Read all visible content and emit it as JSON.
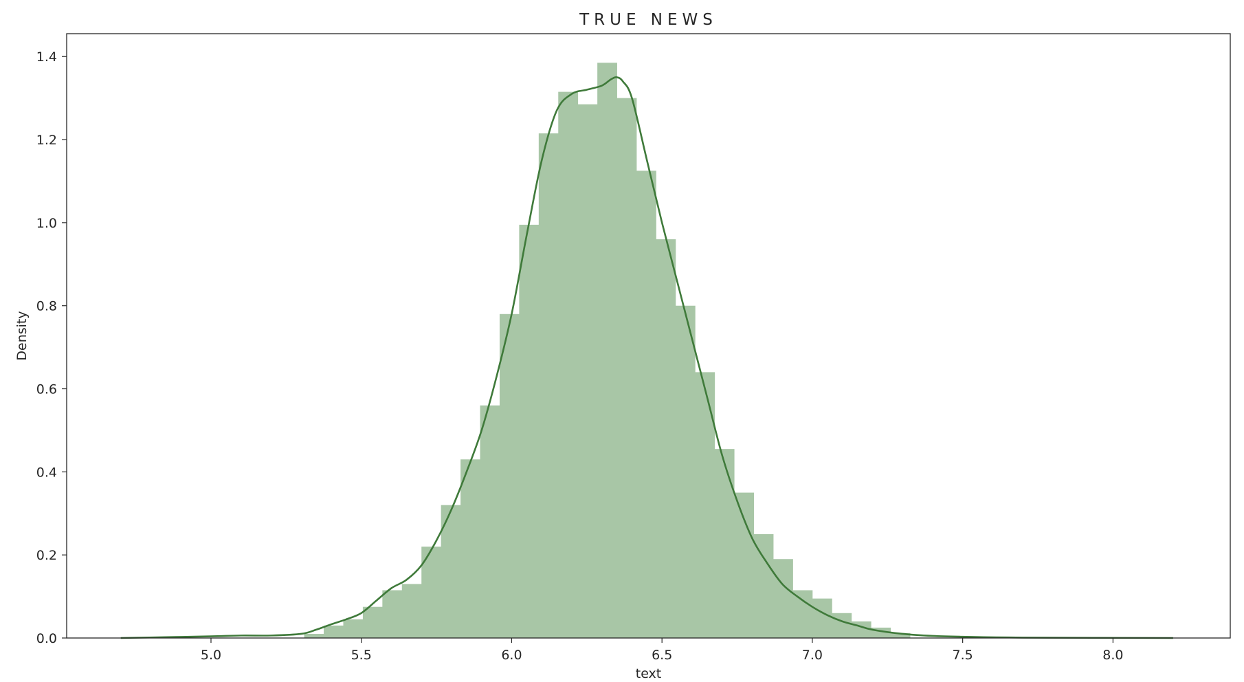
{
  "chart_data": {
    "type": "bar",
    "title": "TRUE NEWS",
    "xlabel": "text",
    "ylabel": "Density",
    "xlim": [
      4.52,
      8.39
    ],
    "ylim": [
      0.0,
      1.455
    ],
    "xticks": [
      5.0,
      5.5,
      6.0,
      6.5,
      7.0,
      7.5,
      8.0
    ],
    "xtick_labels": [
      "5.0",
      "5.5",
      "6.0",
      "6.5",
      "7.0",
      "7.5",
      "8.0"
    ],
    "yticks": [
      0.0,
      0.2,
      0.4,
      0.6,
      0.8,
      1.0,
      1.2,
      1.4
    ],
    "ytick_labels": [
      "0.0",
      "0.2",
      "0.4",
      "0.6",
      "0.8",
      "1.0",
      "1.2",
      "1.4"
    ],
    "grid": false,
    "bar_color": "#a8c6a6",
    "line_color": "#3f7a3a",
    "histogram": {
      "bin_edges": [
        5.31,
        5.375,
        5.44,
        5.505,
        5.57,
        5.635,
        5.7,
        5.765,
        5.83,
        5.895,
        5.96,
        6.025,
        6.09,
        6.155,
        6.22,
        6.285,
        6.35,
        6.415,
        6.48,
        6.545,
        6.61,
        6.675,
        6.74,
        6.805,
        6.87,
        6.935,
        7.0,
        7.065,
        7.13,
        7.195,
        7.26,
        7.325
      ],
      "values": [
        0.01,
        0.03,
        0.045,
        0.075,
        0.115,
        0.13,
        0.22,
        0.32,
        0.43,
        0.56,
        0.78,
        0.995,
        1.215,
        1.315,
        1.285,
        1.385,
        1.3,
        1.125,
        0.96,
        0.8,
        0.64,
        0.455,
        0.35,
        0.25,
        0.19,
        0.115,
        0.095,
        0.06,
        0.04,
        0.025,
        0.012
      ]
    },
    "kde": {
      "x": [
        4.7,
        4.85,
        5.0,
        5.1,
        5.2,
        5.3,
        5.35,
        5.4,
        5.45,
        5.5,
        5.55,
        5.6,
        5.65,
        5.7,
        5.75,
        5.8,
        5.85,
        5.9,
        5.95,
        6.0,
        6.05,
        6.1,
        6.15,
        6.2,
        6.25,
        6.3,
        6.33,
        6.35,
        6.37,
        6.4,
        6.45,
        6.5,
        6.55,
        6.6,
        6.65,
        6.7,
        6.75,
        6.8,
        6.85,
        6.9,
        6.95,
        7.0,
        7.05,
        7.1,
        7.15,
        7.2,
        7.3,
        7.4,
        7.5,
        7.7,
        8.2
      ],
      "y": [
        0.0,
        0.002,
        0.004,
        0.006,
        0.006,
        0.01,
        0.02,
        0.033,
        0.045,
        0.06,
        0.09,
        0.12,
        0.14,
        0.175,
        0.235,
        0.31,
        0.4,
        0.5,
        0.63,
        0.78,
        0.97,
        1.15,
        1.27,
        1.31,
        1.32,
        1.33,
        1.345,
        1.35,
        1.34,
        1.3,
        1.15,
        1.0,
        0.86,
        0.72,
        0.58,
        0.44,
        0.33,
        0.24,
        0.18,
        0.13,
        0.1,
        0.075,
        0.055,
        0.04,
        0.03,
        0.02,
        0.01,
        0.005,
        0.003,
        0.001,
        0.0
      ]
    }
  }
}
